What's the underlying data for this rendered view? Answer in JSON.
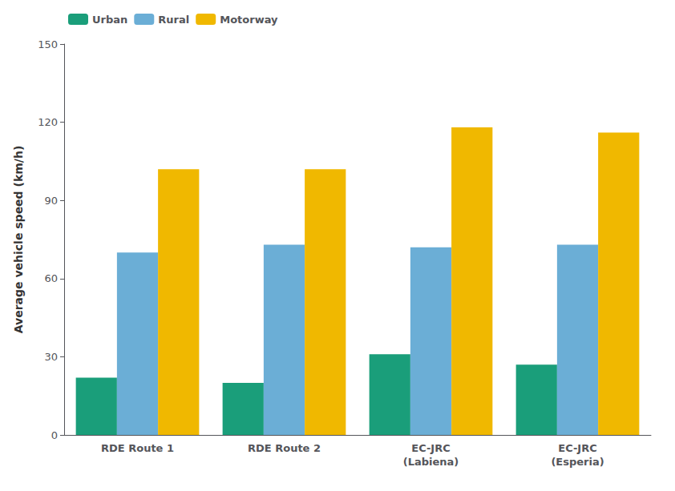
{
  "chart_data": {
    "type": "bar",
    "categories": [
      "RDE Route 1",
      "RDE Route 2",
      "EC-JRC\n(Labiena)",
      "EC-JRC\n(Esperia)"
    ],
    "series": [
      {
        "name": "Urban",
        "color": "#1a9e7a",
        "values": [
          22,
          20,
          31,
          27
        ]
      },
      {
        "name": "Rural",
        "color": "#6baed6",
        "values": [
          70,
          73,
          72,
          73
        ]
      },
      {
        "name": "Motorway",
        "color": "#f0b800",
        "values": [
          102,
          102,
          118,
          116
        ]
      }
    ],
    "ylabel": "Average vehicle speed (km/h)",
    "ylim": [
      0,
      150
    ],
    "yticks": [
      0,
      30,
      60,
      90,
      120,
      150
    ],
    "grid": false,
    "legend": "upper left"
  }
}
